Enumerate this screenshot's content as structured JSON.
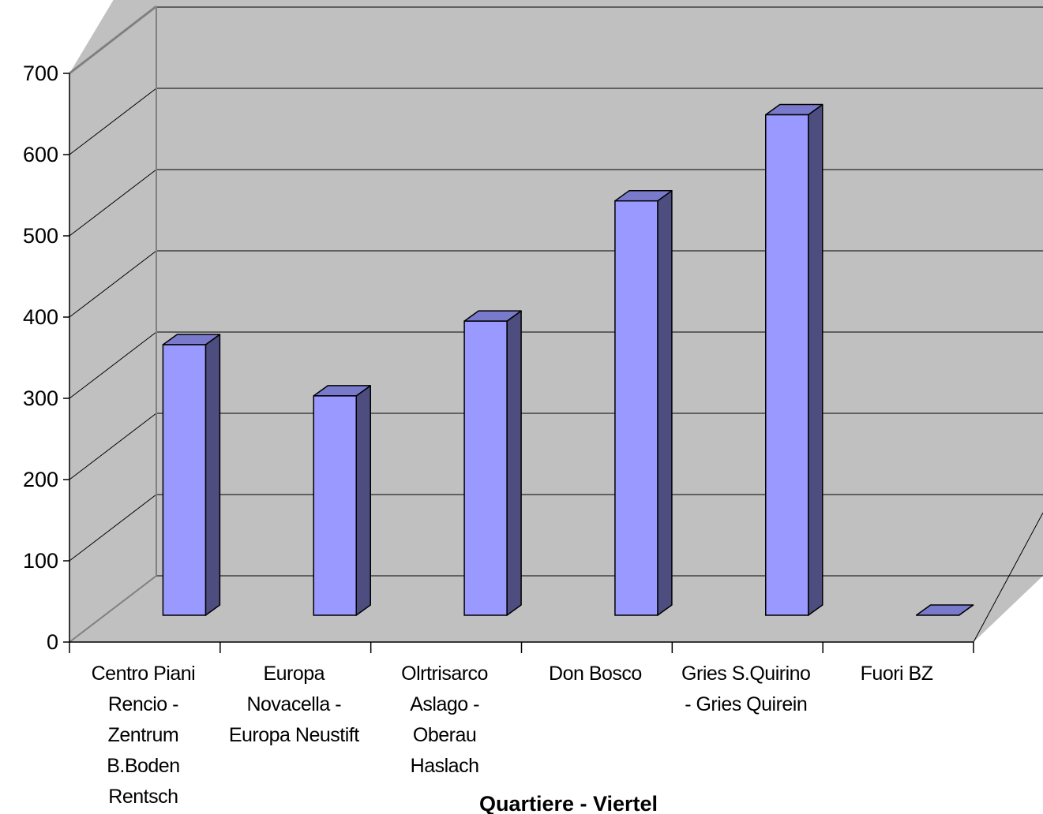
{
  "chart_data": {
    "type": "bar",
    "style": "3d-column",
    "title": "",
    "xlabel": "Quartiere - Viertel",
    "ylabel": "",
    "ylim": [
      0,
      700
    ],
    "yticks": [
      0,
      100,
      200,
      300,
      400,
      500,
      600,
      700
    ],
    "grid": true,
    "legend": "none",
    "categories": [
      [
        "Centro Piani",
        "Rencio -",
        "Zentrum",
        "B.Boden",
        "Rentsch"
      ],
      [
        "Europa",
        "Novacella -",
        "Europa Neustift"
      ],
      [
        "Olrtrisarco",
        "Aslago -",
        "Oberau",
        "Haslach"
      ],
      [
        "Don Bosco"
      ],
      [
        "Gries S.Quirino",
        "- Gries Quirein"
      ],
      [
        "Fuori BZ"
      ]
    ],
    "values": [
      333,
      270,
      362,
      510,
      616,
      0
    ],
    "colors": {
      "bar_front": "#9999ff",
      "bar_side": "#4d4d80",
      "bar_top": "#7a7acc",
      "wall": "#c0c0c0",
      "floor": "#c0c0c0",
      "gridline": "#000000"
    }
  }
}
